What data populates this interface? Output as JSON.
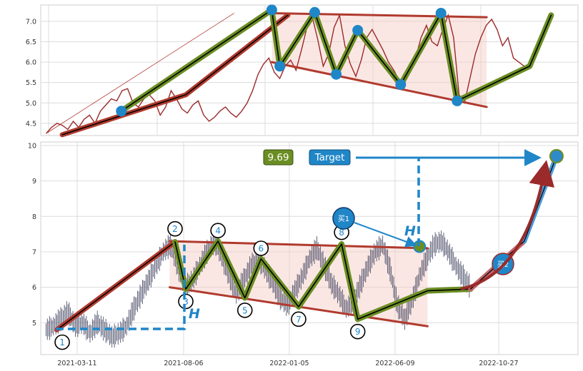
{
  "chart_data": [
    {
      "type": "line",
      "title": "",
      "xlabel": "",
      "ylabel": "",
      "ylim": [
        4.2,
        7.4
      ],
      "yticks": [
        4.5,
        5.0,
        5.5,
        6.0,
        6.5,
        7.0
      ],
      "ytick_labels": [
        "4.5",
        "5.0",
        "5.5",
        "6.0",
        "6.5",
        "7.0"
      ],
      "grid": true,
      "series": [
        {
          "role": "price",
          "color": "#9b2a2a",
          "values": [
            4.25,
            4.4,
            4.5,
            4.45,
            4.35,
            4.55,
            4.4,
            4.6,
            4.7,
            4.5,
            4.8,
            4.95,
            5.1,
            5.05,
            5.3,
            5.35,
            5.0,
            4.9,
            5.1,
            5.2,
            5.05,
            4.7,
            4.9,
            5.3,
            5.1,
            4.85,
            4.75,
            4.95,
            5.05,
            4.7,
            4.55,
            4.65,
            4.8,
            4.9,
            4.75,
            4.65,
            4.8,
            5.0,
            5.3,
            5.7,
            5.95,
            6.1,
            5.75,
            5.6,
            5.9,
            6.05,
            5.8,
            6.3,
            6.85,
            7.1,
            6.55,
            5.9,
            6.2,
            6.85,
            7.15,
            6.4,
            5.95,
            5.65,
            6.05,
            6.6,
            6.8,
            6.55,
            6.3,
            6.0,
            5.8,
            5.55,
            5.5,
            5.75,
            6.1,
            6.6,
            6.9,
            6.5,
            6.4,
            6.8,
            7.15,
            6.6,
            5.2,
            5.0,
            5.6,
            6.2,
            6.6,
            6.9,
            7.05,
            6.8,
            6.4,
            6.6,
            6.1,
            6.0,
            5.9
          ]
        },
        {
          "role": "trendline",
          "color": "#b03a2e",
          "points": [
            [
              0.04,
              4.22
            ],
            [
              0.27,
              5.2
            ],
            [
              0.46,
              7.15
            ]
          ]
        },
        {
          "role": "channel-upper",
          "color": "#b03a2e",
          "points": [
            [
              0.43,
              7.2
            ],
            [
              0.83,
              7.1
            ]
          ]
        },
        {
          "role": "channel-lower",
          "color": "#b03a2e",
          "points": [
            [
              0.43,
              6.0
            ],
            [
              0.83,
              4.9
            ]
          ]
        },
        {
          "role": "zigzag",
          "color": "#6b8e23",
          "points": [
            [
              0.15,
              4.8
            ],
            [
              0.43,
              7.28
            ],
            [
              0.445,
              5.9
            ],
            [
              0.51,
              7.22
            ],
            [
              0.55,
              5.7
            ],
            [
              0.59,
              6.78
            ],
            [
              0.67,
              5.45
            ],
            [
              0.745,
              7.2
            ],
            [
              0.775,
              5.05
            ],
            [
              0.91,
              5.9
            ],
            [
              0.95,
              7.15
            ]
          ]
        }
      ],
      "markers": [
        {
          "name": "dot-1",
          "x": 0.15,
          "y": 4.8
        },
        {
          "name": "dot-2",
          "x": 0.43,
          "y": 7.28
        },
        {
          "name": "dot-3",
          "x": 0.445,
          "y": 5.9
        },
        {
          "name": "dot-4",
          "x": 0.51,
          "y": 7.22
        },
        {
          "name": "dot-5",
          "x": 0.55,
          "y": 5.7
        },
        {
          "name": "dot-6",
          "x": 0.59,
          "y": 6.78
        },
        {
          "name": "dot-7",
          "x": 0.67,
          "y": 5.45
        },
        {
          "name": "dot-8",
          "x": 0.745,
          "y": 7.2
        },
        {
          "name": "dot-9",
          "x": 0.775,
          "y": 5.05
        }
      ]
    },
    {
      "type": "line",
      "title": "",
      "xlabel": "",
      "ylabel": "",
      "ylim": [
        4.1,
        10.1
      ],
      "yticks": [
        5,
        6,
        7,
        8,
        9,
        10
      ],
      "ytick_labels": [
        "5",
        "6",
        "7",
        "8",
        "9",
        "10"
      ],
      "xtick_labels": [
        "2021-03-11",
        "2021-08-06",
        "2022-01-05",
        "2022-06-09",
        "2022-10-27"
      ],
      "grid": true,
      "series": [
        {
          "role": "price",
          "color": "#3c3f5c",
          "values": [
            4.8,
            4.9,
            5.1,
            5.3,
            4.9,
            5.0,
            4.7,
            5.0,
            4.8,
            4.6,
            4.7,
            4.9,
            5.4,
            5.8,
            6.2,
            6.6,
            7.0,
            7.2,
            6.6,
            6.0,
            6.2,
            6.6,
            7.0,
            7.3,
            6.9,
            6.3,
            5.8,
            6.2,
            6.6,
            6.8,
            6.5,
            6.1,
            5.7,
            5.5,
            5.9,
            6.3,
            6.8,
            7.1,
            6.6,
            6.1,
            5.8,
            5.4,
            5.6,
            6.1,
            6.6,
            7.0,
            7.2,
            6.5,
            5.5,
            5.1,
            5.6,
            6.3,
            6.8,
            7.2,
            7.3,
            7.0,
            6.6,
            6.3,
            6.0
          ]
        },
        {
          "role": "trendline",
          "color": "#b03a2e",
          "points": [
            [
              0.03,
              4.8
            ],
            [
              0.25,
              7.28
            ]
          ]
        },
        {
          "role": "channel-upper",
          "color": "#b03a2e",
          "points": [
            [
              0.24,
              7.3
            ],
            [
              0.72,
              7.1
            ]
          ]
        },
        {
          "role": "channel-lower",
          "color": "#b03a2e",
          "points": [
            [
              0.24,
              6.0
            ],
            [
              0.72,
              4.9
            ]
          ]
        },
        {
          "role": "zigzag",
          "color": "#6b8e23",
          "points": [
            [
              0.25,
              7.28
            ],
            [
              0.27,
              5.95
            ],
            [
              0.33,
              7.3
            ],
            [
              0.38,
              5.7
            ],
            [
              0.41,
              6.8
            ],
            [
              0.48,
              5.45
            ],
            [
              0.56,
              7.22
            ],
            [
              0.59,
              5.1
            ],
            [
              0.72,
              5.9
            ],
            [
              0.8,
              5.95
            ]
          ]
        },
        {
          "role": "projection",
          "color": "#3c88c8",
          "points": [
            [
              0.8,
              5.95
            ],
            [
              0.9,
              7.3
            ],
            [
              0.96,
              9.7
            ]
          ]
        }
      ],
      "markers": [
        {
          "name": "swing-1",
          "label": "1",
          "x": 0.04,
          "y": 4.45
        },
        {
          "name": "swing-2",
          "label": "2",
          "x": 0.25,
          "y": 7.65
        },
        {
          "name": "swing-3",
          "label": "3",
          "x": 0.27,
          "y": 5.6
        },
        {
          "name": "swing-4",
          "label": "4",
          "x": 0.33,
          "y": 7.6
        },
        {
          "name": "swing-5",
          "label": "5",
          "x": 0.38,
          "y": 5.35
        },
        {
          "name": "swing-6",
          "label": "6",
          "x": 0.41,
          "y": 7.1
        },
        {
          "name": "swing-7",
          "label": "7",
          "x": 0.48,
          "y": 5.1
        },
        {
          "name": "swing-8",
          "label": "8",
          "x": 0.56,
          "y": 7.55
        },
        {
          "name": "swing-9",
          "label": "9",
          "x": 0.59,
          "y": 4.75
        }
      ],
      "annotations": {
        "price_box": "9.69",
        "target_box": "Target",
        "h_letter": "H",
        "buy_1": "买1",
        "buy_2": "买2"
      },
      "colors": {
        "accent_blue": "#1f86c8",
        "price_box_bg": "#6b8e23",
        "channel_fill": "#f4c9c0",
        "trend_red": "#b03a2e",
        "zigzag_green": "#6b8e23",
        "curve_red": "#9b2a2a"
      }
    }
  ]
}
